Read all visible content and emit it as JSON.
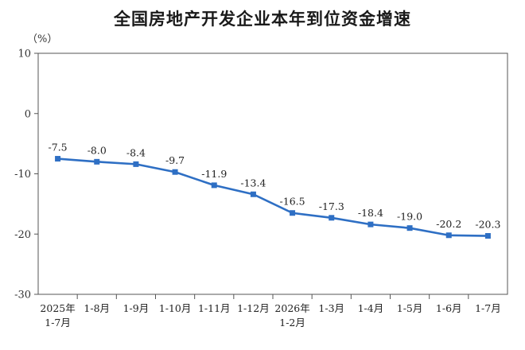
{
  "title": "全国房地产开发企业本年到位资金增速",
  "unit_label": "（%）",
  "chart_data": {
    "type": "line",
    "title": "全国房地产开发企业本年到位资金增速",
    "xlabel": "",
    "ylabel": "（%）",
    "ylim": [
      -30,
      10
    ],
    "yticks": [
      "10",
      "0",
      "-10",
      "-20",
      "-30"
    ],
    "categories": [
      [
        "2025年",
        "1-7月"
      ],
      [
        "1-8月"
      ],
      [
        "1-9月"
      ],
      [
        "1-10月"
      ],
      [
        "1-11月"
      ],
      [
        "1-12月"
      ],
      [
        "2026年",
        "1-2月"
      ],
      [
        "1-3月"
      ],
      [
        "1-4月"
      ],
      [
        "1-5月"
      ],
      [
        "1-6月"
      ],
      [
        "1-7月"
      ]
    ],
    "series": [
      {
        "values": [
          -7.5,
          -8.0,
          -8.4,
          -9.7,
          -11.9,
          -13.4,
          -16.5,
          -17.3,
          -18.4,
          -19.0,
          -20.2,
          -20.3
        ],
        "labels": [
          "-7.5",
          "-8.0",
          "-8.4",
          "-9.7",
          "-11.9",
          "-13.4",
          "-16.5",
          "-17.3",
          "-18.4",
          "-19.0",
          "-20.2",
          "-20.3"
        ],
        "color": "#2e6fc4"
      }
    ],
    "grid": false,
    "legend": "none"
  }
}
